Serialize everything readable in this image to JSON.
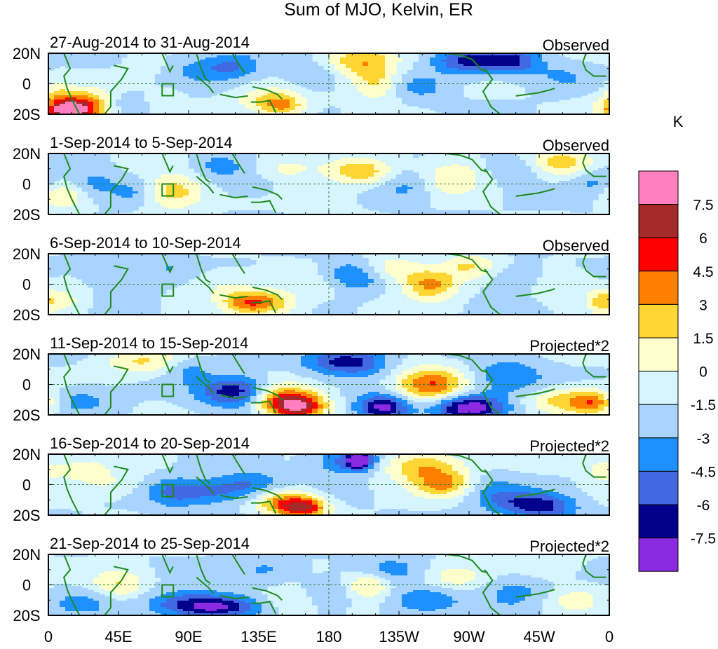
{
  "chart_data": {
    "type": "heatmap",
    "title": "Sum of MJO, Kelvin, ER",
    "units": "K",
    "x_ticks": [
      "0",
      "45E",
      "90E",
      "135E",
      "180",
      "135W",
      "90W",
      "45W",
      "0"
    ],
    "y_ticks": [
      "20N",
      "0",
      "20S"
    ],
    "x_range_deg": [
      0,
      360
    ],
    "y_range_deg": [
      -20,
      20
    ],
    "colorbar": {
      "labels": [
        "7.5",
        "6",
        "4.5",
        "3",
        "1.5",
        "0",
        "-1.5",
        "-3",
        "-4.5",
        "-6",
        "-7.5"
      ],
      "colors": [
        "#ff80c0",
        "#a52a2a",
        "#ff0000",
        "#ff7f00",
        "#ffd633",
        "#ffffcc",
        "#d6f5ff",
        "#a8d4ff",
        "#1e90ff",
        "#4169e1",
        "#00008b",
        "#8a2be2"
      ]
    },
    "panels": [
      {
        "title": "27-Aug-2014 to 31-Aug-2014",
        "label": "Observed",
        "blobs": [
          [
            20,
            -15,
            16,
            7,
            7
          ],
          [
            13,
            -18,
            8,
            4,
            8.5
          ],
          [
            48,
            -13,
            10,
            5,
            -2
          ],
          [
            62,
            12,
            8,
            5,
            1.5
          ],
          [
            75,
            -10,
            8,
            5,
            1.5
          ],
          [
            100,
            10,
            16,
            7,
            -2
          ],
          [
            120,
            12,
            12,
            6,
            -2.5
          ],
          [
            140,
            -10,
            16,
            6,
            2.5
          ],
          [
            150,
            -15,
            10,
            5,
            4
          ],
          [
            170,
            5,
            12,
            6,
            -2
          ],
          [
            200,
            15,
            16,
            8,
            4
          ],
          [
            210,
            0,
            10,
            8,
            3
          ],
          [
            240,
            -2,
            12,
            6,
            -2
          ],
          [
            270,
            15,
            16,
            6,
            -5
          ],
          [
            300,
            15,
            12,
            6,
            -4
          ],
          [
            330,
            5,
            14,
            6,
            -1.5
          ],
          [
            5,
            -5,
            6,
            6,
            1.5
          ]
        ]
      },
      {
        "title": "1-Sep-2014 to 5-Sep-2014",
        "label": "Observed",
        "blobs": [
          [
            8,
            -8,
            12,
            6,
            2.5
          ],
          [
            30,
            0,
            10,
            7,
            -2
          ],
          [
            55,
            -5,
            10,
            6,
            -2
          ],
          [
            80,
            -5,
            14,
            8,
            4
          ],
          [
            110,
            12,
            12,
            6,
            -2
          ],
          [
            130,
            0,
            14,
            6,
            -1.5
          ],
          [
            150,
            10,
            16,
            7,
            2
          ],
          [
            175,
            -10,
            14,
            6,
            1.5
          ],
          [
            200,
            8,
            14,
            6,
            4
          ],
          [
            230,
            -2,
            12,
            7,
            -2
          ],
          [
            260,
            5,
            14,
            8,
            3
          ],
          [
            300,
            10,
            12,
            6,
            -2
          ],
          [
            330,
            14,
            16,
            6,
            3.5
          ],
          [
            350,
            0,
            10,
            8,
            -2
          ]
        ]
      },
      {
        "title": "6-Sep-2014 to 10-Sep-2014",
        "label": "Observed",
        "blobs": [
          [
            10,
            -10,
            10,
            6,
            2
          ],
          [
            40,
            8,
            12,
            6,
            -1.5
          ],
          [
            75,
            10,
            12,
            6,
            -1.5
          ],
          [
            110,
            0,
            14,
            7,
            1.5
          ],
          [
            140,
            -12,
            14,
            6,
            4.5
          ],
          [
            125,
            -12,
            10,
            5,
            3
          ],
          [
            180,
            0,
            14,
            7,
            1.5
          ],
          [
            195,
            5,
            14,
            7,
            -4
          ],
          [
            220,
            10,
            14,
            6,
            3
          ],
          [
            245,
            0,
            12,
            7,
            5
          ],
          [
            270,
            12,
            12,
            6,
            3
          ],
          [
            300,
            5,
            14,
            6,
            -1.5
          ],
          [
            330,
            0,
            14,
            7,
            1.5
          ],
          [
            355,
            -12,
            6,
            6,
            3
          ]
        ]
      },
      {
        "title": "11-Sep-2014 to 15-Sep-2014",
        "label": "Projected*2",
        "blobs": [
          [
            20,
            -10,
            16,
            6,
            -2
          ],
          [
            60,
            15,
            18,
            6,
            3
          ],
          [
            90,
            10,
            10,
            6,
            -2
          ],
          [
            110,
            -5,
            14,
            7,
            -3
          ],
          [
            125,
            -5,
            12,
            7,
            -4
          ],
          [
            150,
            -10,
            16,
            7,
            5
          ],
          [
            160,
            -15,
            12,
            6,
            7
          ],
          [
            180,
            15,
            14,
            6,
            -3
          ],
          [
            200,
            15,
            14,
            6,
            -4
          ],
          [
            215,
            -15,
            12,
            6,
            -7
          ],
          [
            245,
            0,
            16,
            8,
            6
          ],
          [
            270,
            -15,
            16,
            6,
            -7
          ],
          [
            295,
            5,
            16,
            8,
            -3
          ],
          [
            330,
            -10,
            16,
            6,
            3.5
          ],
          [
            350,
            -12,
            10,
            6,
            4.5
          ]
        ]
      },
      {
        "title": "16-Sep-2014 to 20-Sep-2014",
        "label": "Projected*2",
        "blobs": [
          [
            20,
            10,
            14,
            6,
            2
          ],
          [
            40,
            0,
            14,
            6,
            1.5
          ],
          [
            80,
            -5,
            12,
            7,
            -3
          ],
          [
            105,
            -5,
            14,
            6,
            -3
          ],
          [
            130,
            0,
            14,
            6,
            -3
          ],
          [
            150,
            -12,
            12,
            6,
            5
          ],
          [
            165,
            -15,
            10,
            5,
            6.5
          ],
          [
            190,
            15,
            14,
            6,
            -3.5
          ],
          [
            200,
            16,
            6,
            4,
            -7
          ],
          [
            240,
            12,
            18,
            7,
            4.5
          ],
          [
            255,
            0,
            14,
            6,
            5
          ],
          [
            280,
            -2,
            16,
            7,
            -2
          ],
          [
            300,
            -12,
            16,
            6,
            -3
          ],
          [
            320,
            -15,
            14,
            6,
            -4
          ],
          [
            355,
            10,
            8,
            6,
            2
          ]
        ]
      },
      {
        "title": "21-Sep-2014 to 25-Sep-2014",
        "label": "Projected*2",
        "blobs": [
          [
            20,
            -12,
            16,
            6,
            -2
          ],
          [
            45,
            0,
            12,
            7,
            3
          ],
          [
            90,
            -12,
            20,
            6,
            -4
          ],
          [
            110,
            -15,
            18,
            5,
            -4.5
          ],
          [
            140,
            10,
            14,
            6,
            -2
          ],
          [
            155,
            -10,
            12,
            6,
            2
          ],
          [
            180,
            -5,
            12,
            6,
            -1.5
          ],
          [
            205,
            0,
            10,
            6,
            3.5
          ],
          [
            220,
            10,
            14,
            6,
            -2
          ],
          [
            240,
            -10,
            16,
            6,
            -3
          ],
          [
            260,
            5,
            14,
            6,
            2
          ],
          [
            300,
            -5,
            14,
            8,
            -2
          ],
          [
            320,
            12,
            14,
            6,
            1.5
          ],
          [
            340,
            -10,
            14,
            6,
            2
          ]
        ]
      }
    ]
  }
}
